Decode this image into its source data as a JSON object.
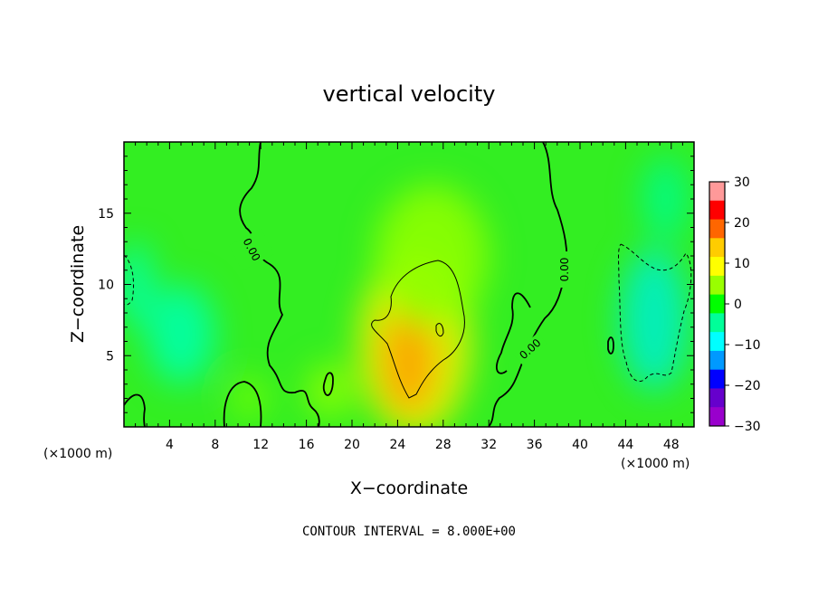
{
  "chart_data": {
    "type": "heatmap",
    "title": "vertical velocity",
    "xlabel": "X−coordinate",
    "ylabel": "Z−coordinate",
    "x_unit_label": "(×1000 m)",
    "z_unit_label": "(×1000 m)",
    "xlim": [
      0,
      50
    ],
    "ylim": [
      0,
      20
    ],
    "x_ticks": [
      4,
      8,
      12,
      16,
      20,
      24,
      28,
      32,
      36,
      40,
      44,
      48
    ],
    "y_ticks": [
      5,
      10,
      15
    ],
    "colorbar": {
      "range": [
        -30,
        30
      ],
      "ticks": [
        30,
        20,
        10,
        0,
        -10,
        -20,
        -30
      ],
      "tick_labels": [
        "30",
        "20",
        "10",
        "0",
        "−10",
        "−20",
        "−30"
      ],
      "colors": [
        "#ff9999",
        "#ff0000",
        "#ff6600",
        "#ffcc00",
        "#ffff00",
        "#99ff00",
        "#00ff00",
        "#00ff99",
        "#00ffff",
        "#0099ff",
        "#0000ff",
        "#6600cc",
        "#9900cc"
      ]
    },
    "contour_interval_text": "CONTOUR INTERVAL = 8.000E+00",
    "contour_labels": [
      "0.00",
      "0.00",
      "0.00"
    ],
    "blobs": [
      {
        "x": 25.5,
        "z": 5.8,
        "w": 10,
        "h": 13,
        "value": 11
      },
      {
        "x": 25,
        "z": 4.8,
        "w": 5,
        "h": 8,
        "value": 16
      },
      {
        "x": 27,
        "z": 12,
        "w": 10,
        "h": 10,
        "value": 6
      },
      {
        "x": 5,
        "z": 6.5,
        "w": 6,
        "h": 7,
        "value": -4
      },
      {
        "x": 1,
        "z": 10,
        "w": 3,
        "h": 6,
        "value": -4
      },
      {
        "x": 46.5,
        "z": 7.5,
        "w": 6,
        "h": 10,
        "value": -6
      },
      {
        "x": 47.5,
        "z": 16,
        "w": 4,
        "h": 6,
        "value": -3
      },
      {
        "x": 18,
        "z": 2.5,
        "w": 4,
        "h": 4,
        "value": 6
      },
      {
        "x": 11,
        "z": 2,
        "w": 3,
        "h": 3,
        "value": 5
      }
    ]
  }
}
